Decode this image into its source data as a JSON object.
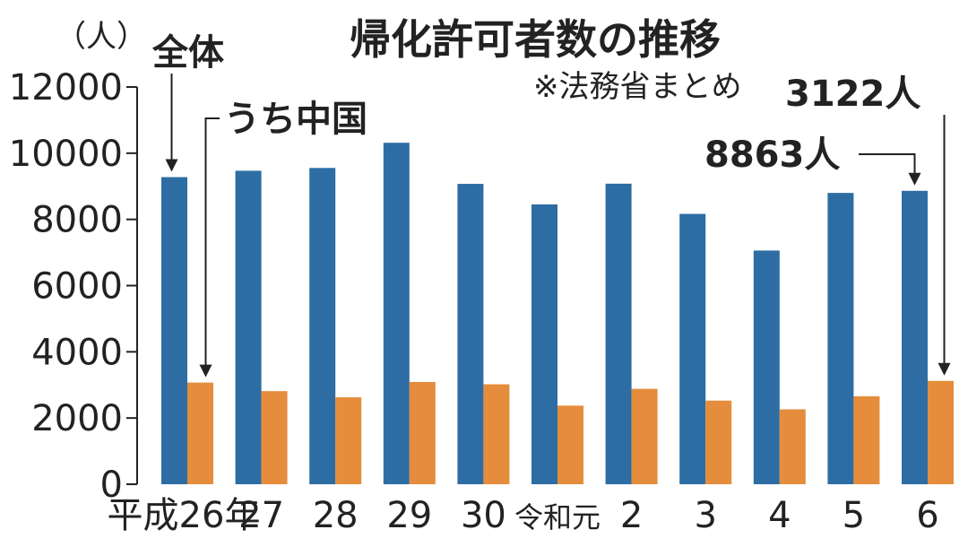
{
  "chart_data": {
    "type": "bar",
    "title": "帰化許可者数の推移",
    "subtitle": "※法務省まとめ",
    "unit_label": "（人）",
    "categories": [
      "平成26年",
      "27",
      "28",
      "29",
      "30",
      "令和元",
      "2",
      "3",
      "4",
      "5",
      "6"
    ],
    "series": [
      {
        "name": "全体",
        "color": "#2d6da3",
        "values": [
          9277,
          9469,
          9554,
          10315,
          9074,
          8453,
          9079,
          8167,
          7059,
          8800,
          8863
        ]
      },
      {
        "name": "うち中国",
        "color": "#e58d3c",
        "values": [
          3071,
          2813,
          2626,
          3088,
          3019,
          2374,
          2881,
          2526,
          2262,
          2658,
          3122
        ]
      }
    ],
    "ylim": [
      0,
      12000
    ],
    "yticks": [
      "0",
      "2000",
      "4000",
      "6000",
      "8000",
      "10000",
      "12000"
    ],
    "grid": false,
    "annotations": {
      "last_total": "8863人",
      "last_china": "3122人"
    }
  }
}
